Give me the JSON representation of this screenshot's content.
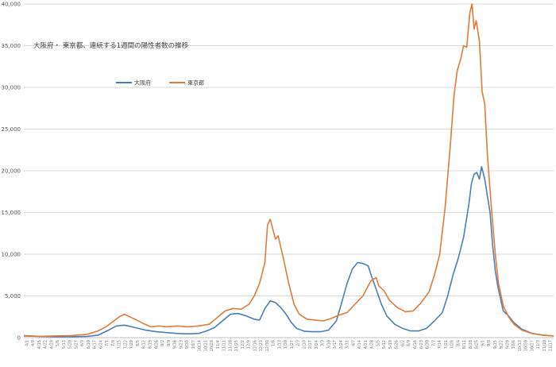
{
  "chart_data": {
    "type": "line",
    "title": "大阪府・ 東京都、連続する1週間の陽性者数の推移",
    "xlabel": "",
    "ylabel": "",
    "ylim": [
      0,
      40000
    ],
    "yticks": [
      "0",
      "5,000",
      "10,000",
      "15,000",
      "20,000",
      "25,000",
      "30,000",
      "35,000",
      "40,000"
    ],
    "grid": true,
    "legend_position": "upper-left",
    "x_tick_labels": [
      "4/1",
      "4/8",
      "4/15",
      "4/22",
      "4/29",
      "5/6",
      "5/13",
      "5/20",
      "5/27",
      "6/3",
      "6/10",
      "6/17",
      "6/24",
      "7/1",
      "7/8",
      "7/15",
      "7/22",
      "7/29",
      "8/5",
      "8/12",
      "8/19",
      "8/26",
      "9/2",
      "9/9",
      "9/16",
      "9/23",
      "9/30",
      "10/7",
      "10/14",
      "10/21",
      "10/28",
      "11/4",
      "11/11",
      "11/18",
      "11/25",
      "12/2",
      "12/9",
      "12/16",
      "12/23",
      "12/30",
      "1/6",
      "1/13",
      "1/20",
      "1/27",
      "2/3",
      "2/10",
      "2/17",
      "2/24",
      "3/3",
      "3/10",
      "3/17",
      "3/24",
      "3/31",
      "4/7",
      "4/14",
      "4/21",
      "4/28",
      "5/5",
      "5/12",
      "5/19",
      "5/26",
      "6/2",
      "6/9",
      "6/16",
      "6/23",
      "6/30",
      "7/7",
      "7/14",
      "7/21",
      "7/28",
      "8/4",
      "8/11",
      "8/18",
      "8/25",
      "9/1",
      "9/8",
      "9/15",
      "9/22",
      "9/29",
      "10/6",
      "10/13",
      "10/20",
      "10/27",
      "11/3",
      "11/10",
      "11/17"
    ],
    "x": [
      0,
      0.05,
      0.1,
      0.15,
      0.2,
      0.25,
      0.3,
      0.35,
      0.4,
      0.45,
      0.5,
      0.55,
      0.6,
      0.65,
      0.7,
      0.75,
      0.8,
      0.85,
      0.9,
      0.95,
      1.0
    ],
    "series": [
      {
        "name": "大阪府",
        "color": "#4a7ebb",
        "points": [
          [
            0.0,
            200
          ],
          [
            0.03,
            150
          ],
          [
            0.06,
            100
          ],
          [
            0.09,
            100
          ],
          [
            0.12,
            150
          ],
          [
            0.14,
            300
          ],
          [
            0.16,
            900
          ],
          [
            0.175,
            1400
          ],
          [
            0.19,
            1500
          ],
          [
            0.21,
            1200
          ],
          [
            0.23,
            900
          ],
          [
            0.25,
            700
          ],
          [
            0.27,
            600
          ],
          [
            0.29,
            500
          ],
          [
            0.31,
            450
          ],
          [
            0.33,
            500
          ],
          [
            0.345,
            800
          ],
          [
            0.36,
            1200
          ],
          [
            0.375,
            2000
          ],
          [
            0.39,
            2800
          ],
          [
            0.405,
            2900
          ],
          [
            0.42,
            2600
          ],
          [
            0.435,
            2200
          ],
          [
            0.445,
            2100
          ],
          [
            0.455,
            3500
          ],
          [
            0.465,
            4400
          ],
          [
            0.475,
            4200
          ],
          [
            0.485,
            3600
          ],
          [
            0.495,
            2800
          ],
          [
            0.505,
            1800
          ],
          [
            0.515,
            1100
          ],
          [
            0.53,
            750
          ],
          [
            0.545,
            700
          ],
          [
            0.56,
            700
          ],
          [
            0.575,
            900
          ],
          [
            0.59,
            2000
          ],
          [
            0.6,
            4200
          ],
          [
            0.61,
            6500
          ],
          [
            0.62,
            8200
          ],
          [
            0.63,
            9000
          ],
          [
            0.64,
            8900
          ],
          [
            0.65,
            8600
          ],
          [
            0.655,
            7600
          ],
          [
            0.665,
            5800
          ],
          [
            0.675,
            4000
          ],
          [
            0.685,
            2600
          ],
          [
            0.7,
            1600
          ],
          [
            0.715,
            1100
          ],
          [
            0.73,
            800
          ],
          [
            0.745,
            800
          ],
          [
            0.76,
            1100
          ],
          [
            0.775,
            2000
          ],
          [
            0.79,
            3000
          ],
          [
            0.8,
            5000
          ],
          [
            0.81,
            7500
          ],
          [
            0.82,
            9500
          ],
          [
            0.83,
            12000
          ],
          [
            0.84,
            16000
          ],
          [
            0.845,
            18500
          ],
          [
            0.85,
            19600
          ],
          [
            0.855,
            19800
          ],
          [
            0.86,
            19000
          ],
          [
            0.864,
            20500
          ],
          [
            0.87,
            19000
          ],
          [
            0.875,
            17000
          ],
          [
            0.88,
            15000
          ],
          [
            0.885,
            11000
          ],
          [
            0.89,
            8000
          ],
          [
            0.895,
            6000
          ],
          [
            0.905,
            3200
          ],
          [
            0.915,
            2600
          ],
          [
            0.925,
            1800
          ],
          [
            0.94,
            1000
          ],
          [
            0.96,
            500
          ],
          [
            0.98,
            300
          ],
          [
            1.0,
            200
          ]
        ]
      },
      {
        "name": "東京都",
        "color": "#e07b39",
        "points": [
          [
            0.0,
            250
          ],
          [
            0.03,
            150
          ],
          [
            0.06,
            200
          ],
          [
            0.09,
            250
          ],
          [
            0.12,
            400
          ],
          [
            0.14,
            800
          ],
          [
            0.155,
            1300
          ],
          [
            0.17,
            2000
          ],
          [
            0.18,
            2500
          ],
          [
            0.19,
            2800
          ],
          [
            0.2,
            2500
          ],
          [
            0.21,
            2200
          ],
          [
            0.225,
            1700
          ],
          [
            0.24,
            1300
          ],
          [
            0.255,
            1400
          ],
          [
            0.27,
            1300
          ],
          [
            0.29,
            1400
          ],
          [
            0.31,
            1300
          ],
          [
            0.33,
            1400
          ],
          [
            0.35,
            1600
          ],
          [
            0.365,
            2400
          ],
          [
            0.38,
            3200
          ],
          [
            0.395,
            3500
          ],
          [
            0.41,
            3400
          ],
          [
            0.425,
            4000
          ],
          [
            0.435,
            5000
          ],
          [
            0.445,
            6500
          ],
          [
            0.455,
            9000
          ],
          [
            0.46,
            13500
          ],
          [
            0.465,
            14200
          ],
          [
            0.47,
            13000
          ],
          [
            0.475,
            11800
          ],
          [
            0.48,
            12200
          ],
          [
            0.49,
            9500
          ],
          [
            0.5,
            6500
          ],
          [
            0.51,
            4000
          ],
          [
            0.52,
            2800
          ],
          [
            0.535,
            2200
          ],
          [
            0.55,
            2100
          ],
          [
            0.565,
            2000
          ],
          [
            0.58,
            2300
          ],
          [
            0.595,
            2700
          ],
          [
            0.61,
            3000
          ],
          [
            0.625,
            4000
          ],
          [
            0.64,
            5000
          ],
          [
            0.65,
            6200
          ],
          [
            0.655,
            6800
          ],
          [
            0.665,
            7200
          ],
          [
            0.67,
            6200
          ],
          [
            0.68,
            5600
          ],
          [
            0.69,
            4500
          ],
          [
            0.705,
            3600
          ],
          [
            0.72,
            3100
          ],
          [
            0.735,
            3200
          ],
          [
            0.75,
            4200
          ],
          [
            0.765,
            5500
          ],
          [
            0.775,
            7500
          ],
          [
            0.785,
            10000
          ],
          [
            0.795,
            15500
          ],
          [
            0.805,
            23000
          ],
          [
            0.812,
            29000
          ],
          [
            0.818,
            32000
          ],
          [
            0.825,
            33500
          ],
          [
            0.83,
            35000
          ],
          [
            0.836,
            34800
          ],
          [
            0.842,
            39000
          ],
          [
            0.846,
            40000
          ],
          [
            0.85,
            37000
          ],
          [
            0.854,
            38000
          ],
          [
            0.86,
            35500
          ],
          [
            0.865,
            29500
          ],
          [
            0.87,
            28000
          ],
          [
            0.875,
            22000
          ],
          [
            0.882,
            16000
          ],
          [
            0.89,
            10000
          ],
          [
            0.896,
            6500
          ],
          [
            0.905,
            3800
          ],
          [
            0.915,
            2500
          ],
          [
            0.925,
            1600
          ],
          [
            0.94,
            900
          ],
          [
            0.96,
            500
          ],
          [
            0.98,
            300
          ],
          [
            1.0,
            200
          ]
        ]
      }
    ]
  }
}
